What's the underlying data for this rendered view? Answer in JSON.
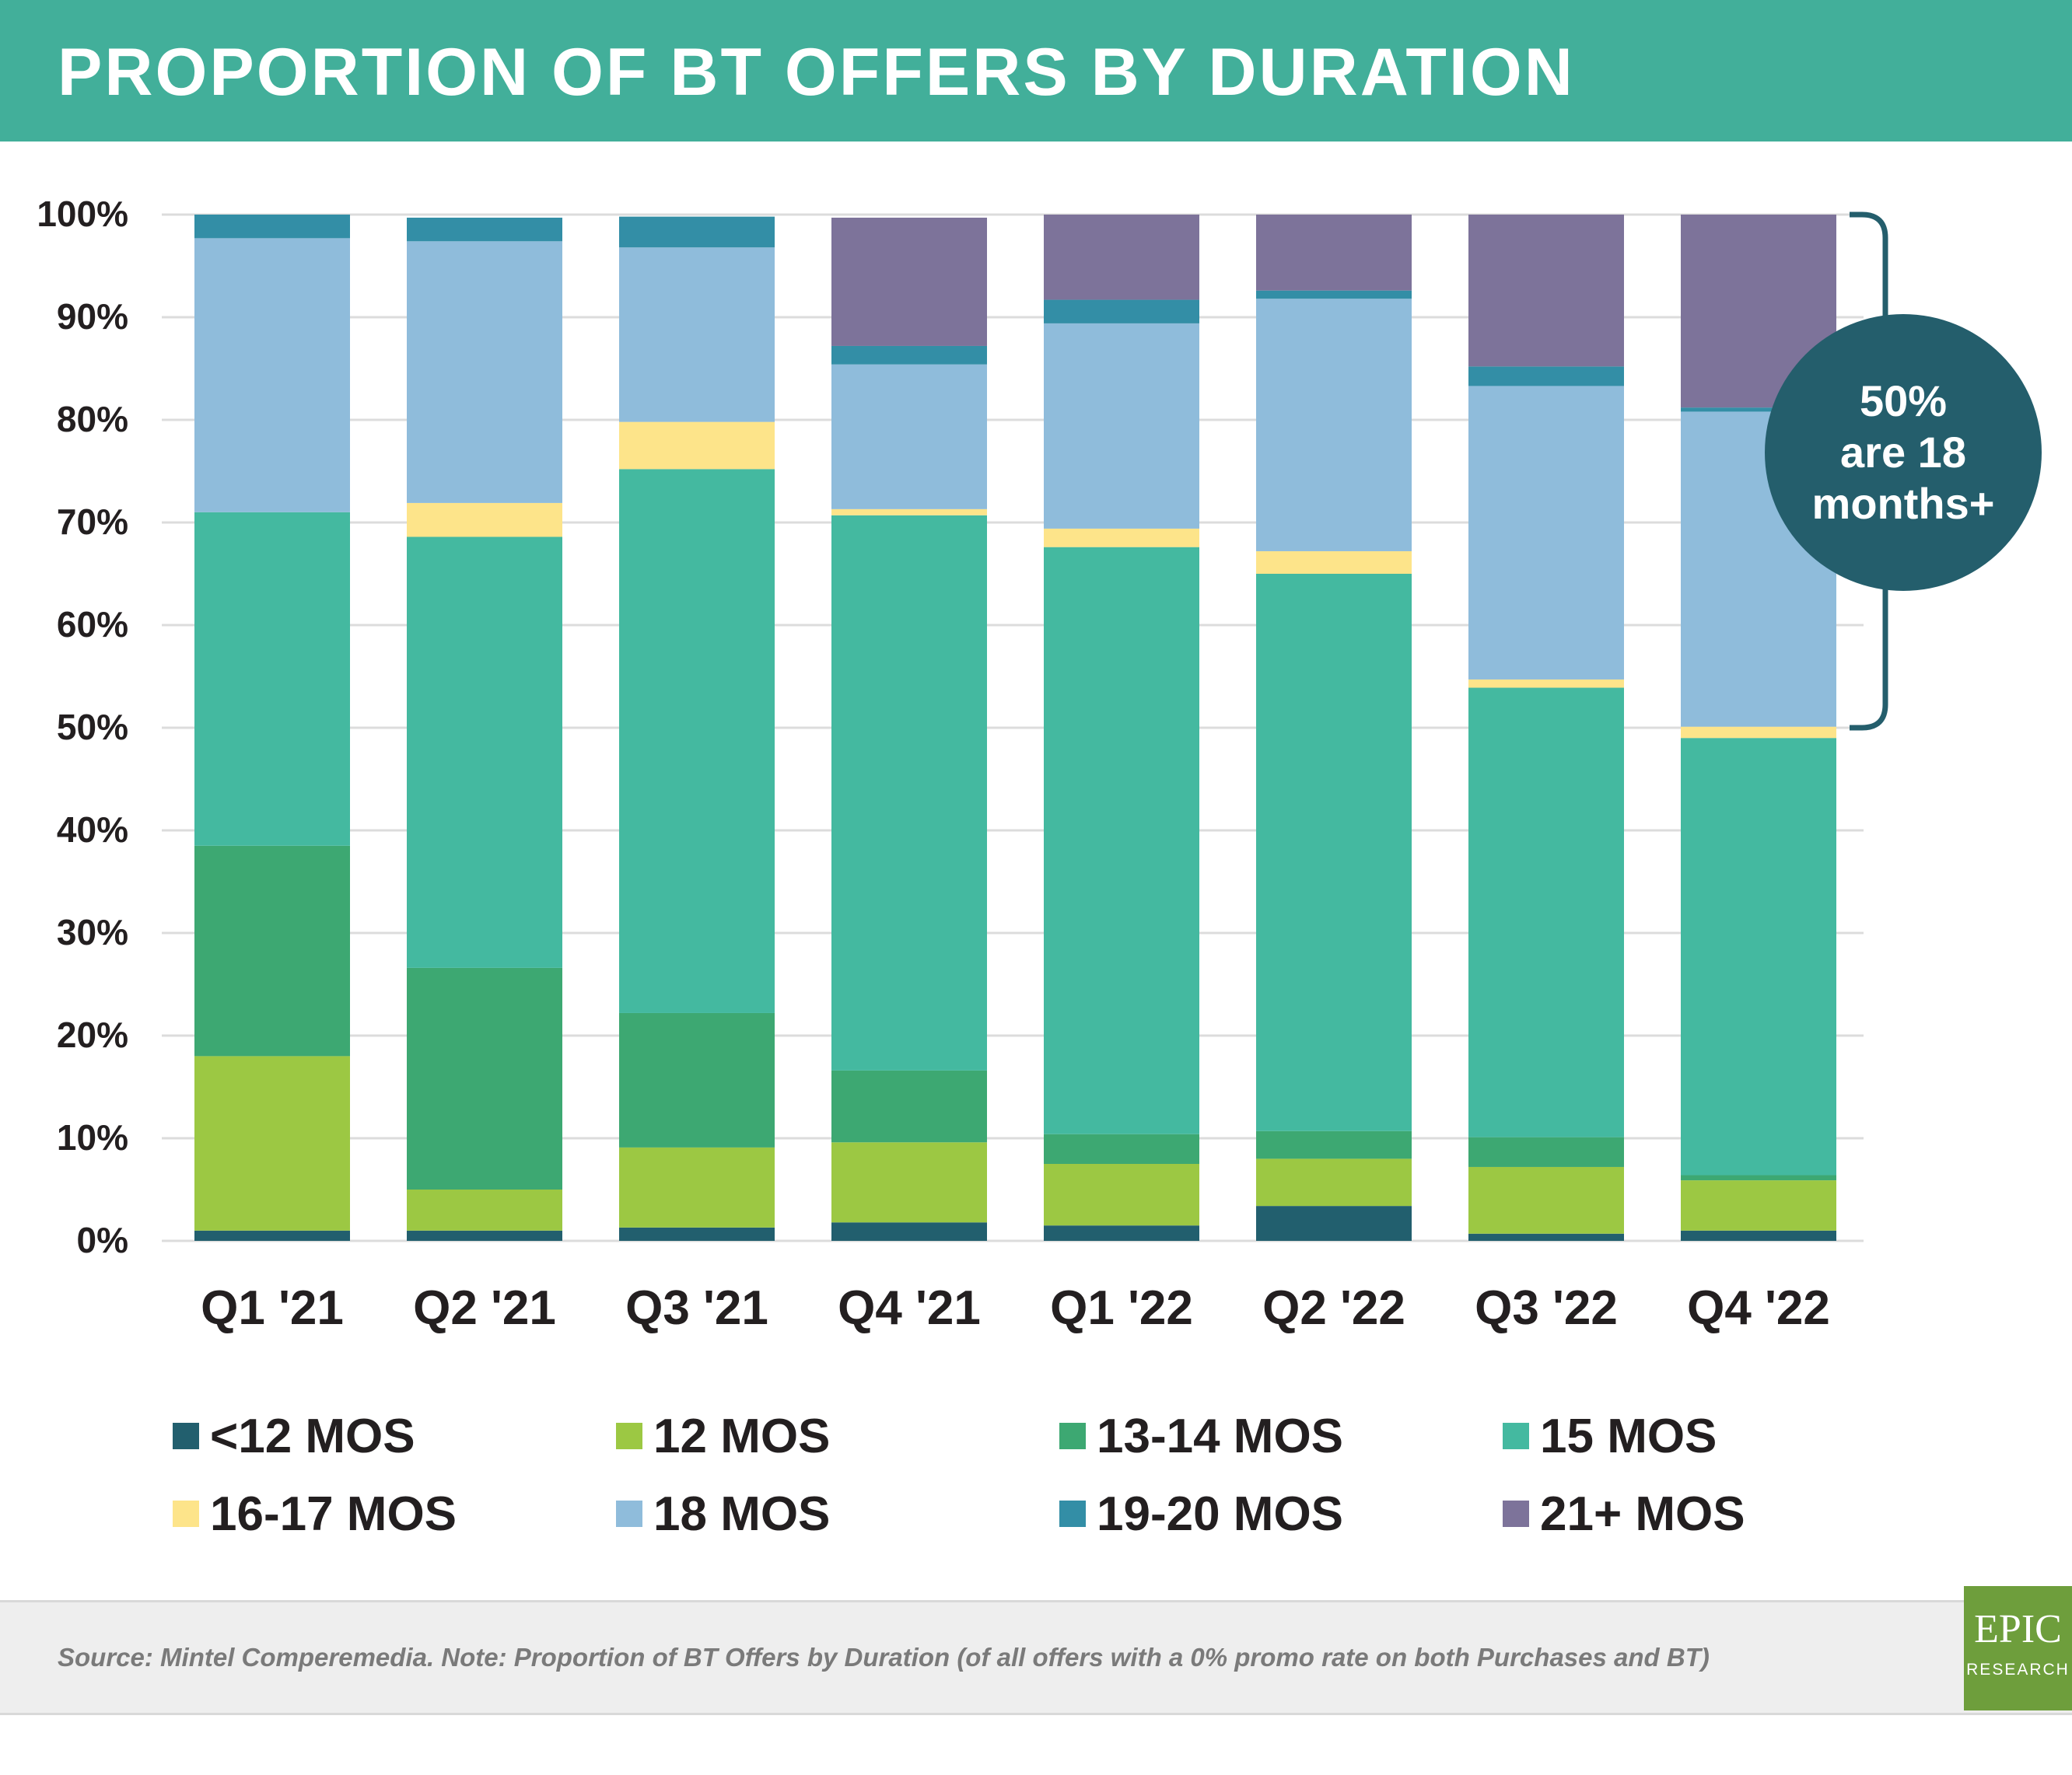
{
  "header": {
    "title": "PROPORTION OF BT OFFERS BY DURATION"
  },
  "chart_data": {
    "type": "bar",
    "stacked": true,
    "title": "PROPORTION OF BT OFFERS BY DURATION",
    "categories": [
      "Q1 '21",
      "Q2 '21",
      "Q3 '21",
      "Q4 '21",
      "Q1 '22",
      "Q2 '22",
      "Q3 '22",
      "Q4 '22"
    ],
    "y_ticks": [
      "0%",
      "10%",
      "20%",
      "30%",
      "40%",
      "50%",
      "60%",
      "70%",
      "80%",
      "90%",
      "100%"
    ],
    "ylim": [
      0,
      100
    ],
    "grid": true,
    "legend_position": "bottom",
    "series": [
      {
        "name": "<12 MOS",
        "color": "#225f6e",
        "values": [
          1.0,
          1.0,
          1.3,
          1.8,
          1.5,
          3.4,
          0.7,
          1.0
        ]
      },
      {
        "name": "12 MOS",
        "color": "#9cc843",
        "values": [
          17.0,
          4.0,
          7.8,
          7.8,
          6.0,
          4.6,
          6.5,
          4.9
        ]
      },
      {
        "name": "13-14 MOS",
        "color": "#3da872",
        "values": [
          20.5,
          21.6,
          13.1,
          7.0,
          2.9,
          2.7,
          2.9,
          0.5
        ]
      },
      {
        "name": "15 MOS",
        "color": "#44b9a0",
        "values": [
          32.5,
          42.0,
          53.0,
          54.1,
          57.2,
          54.3,
          43.8,
          42.6
        ]
      },
      {
        "name": "16-17 MOS",
        "color": "#fde48a",
        "values": [
          0.0,
          3.3,
          4.6,
          0.6,
          1.8,
          2.2,
          0.8,
          1.1
        ]
      },
      {
        "name": "18 MOS",
        "color": "#8fbcdb",
        "values": [
          26.7,
          25.5,
          17.0,
          14.1,
          20.0,
          24.6,
          28.6,
          30.7
        ]
      },
      {
        "name": "19-20 MOS",
        "color": "#338ea6",
        "values": [
          2.3,
          2.3,
          3.0,
          1.8,
          2.3,
          0.8,
          1.9,
          0.4
        ]
      },
      {
        "name": "21+ MOS",
        "color": "#7d739a",
        "values": [
          0.0,
          0.0,
          0.0,
          12.5,
          8.3,
          7.4,
          14.8,
          18.8
        ]
      }
    ],
    "annotation": {
      "lines": [
        "50%",
        "are 18",
        "months+"
      ],
      "color": "#245e6c",
      "range": [
        50,
        100
      ]
    }
  },
  "footer": {
    "note": "Source: Mintel Comperemedia. Note: Proportion of BT Offers by Duration (of all offers with a 0% promo rate on both Purchases and BT)"
  },
  "logo": {
    "main": "EPIC",
    "sub": "RESEARCH",
    "color": "#6e9e3c"
  }
}
